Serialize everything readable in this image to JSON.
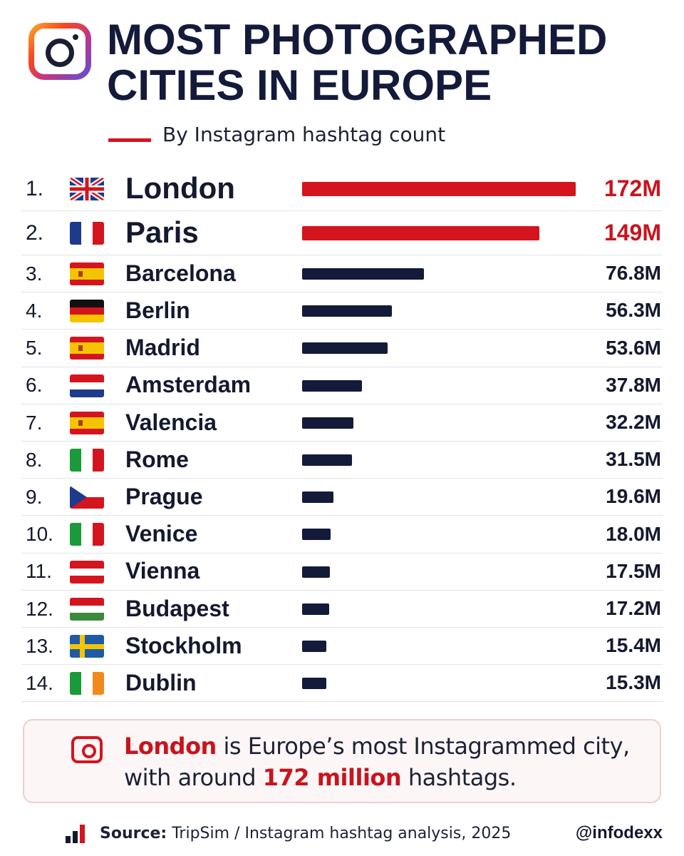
{
  "header": {
    "title_line1": "MOST PHOTOGRAPHED",
    "title_line2": "CITIES IN EUROPE",
    "subtitle": "By Instagram hashtag count"
  },
  "colors": {
    "accent_red": "#d4141e",
    "bar_dark": "#141a3a"
  },
  "chart_data": {
    "type": "bar",
    "orientation": "horizontal",
    "title": "MOST PHOTOGRAPHED CITIES IN EUROPE",
    "subtitle": "By Instagram hashtag count",
    "categories": [
      "London",
      "Paris",
      "Barcelona",
      "Berlin",
      "Madrid",
      "Amsterdam",
      "Valencia",
      "Rome",
      "Prague",
      "Venice",
      "Vienna",
      "Budapest",
      "Stockholm",
      "Dublin"
    ],
    "ranks": [
      "1.",
      "2.",
      "3.",
      "4.",
      "5.",
      "6.",
      "7.",
      "8.",
      "9.",
      "10.",
      "11.",
      "12.",
      "13.",
      "14."
    ],
    "values": [
      172,
      149,
      76.8,
      56.3,
      53.6,
      37.8,
      32.2,
      31.5,
      19.6,
      18.0,
      17.5,
      17.2,
      15.4,
      15.3
    ],
    "value_labels": [
      "172M",
      "149M",
      "76.8M",
      "56.3M",
      "53.6M",
      "37.8M",
      "32.2M",
      "31.5M",
      "19.6M",
      "18.0M",
      "17.5M",
      "17.2M",
      "15.4M",
      "15.3M"
    ],
    "flags": [
      "uk-flag-icon",
      "france-flag-icon",
      "spain-flag-icon",
      "germany-flag-icon",
      "spain-flag-icon",
      "netherlands-flag-icon",
      "spain-flag-icon",
      "italy-flag-icon",
      "czech-flag-icon",
      "italy-flag-icon",
      "austria-flag-icon",
      "hungary-flag-icon",
      "sweden-flag-icon",
      "ireland-flag-icon"
    ],
    "highlighted": [
      true,
      true,
      false,
      false,
      false,
      false,
      false,
      false,
      false,
      false,
      false,
      false,
      false,
      false
    ],
    "xlim": [
      0,
      172
    ],
    "grid": false,
    "legend": "none"
  },
  "callout": {
    "part1": "London",
    "part2": " is Europe’s most Instagrammed city, with around ",
    "part3": "172 million",
    "part4": " hashtags."
  },
  "footer": {
    "source_label": "Source:",
    "source_text": " TripSim / Instagram hashtag analysis, 2025",
    "handle": "@infodexx"
  }
}
